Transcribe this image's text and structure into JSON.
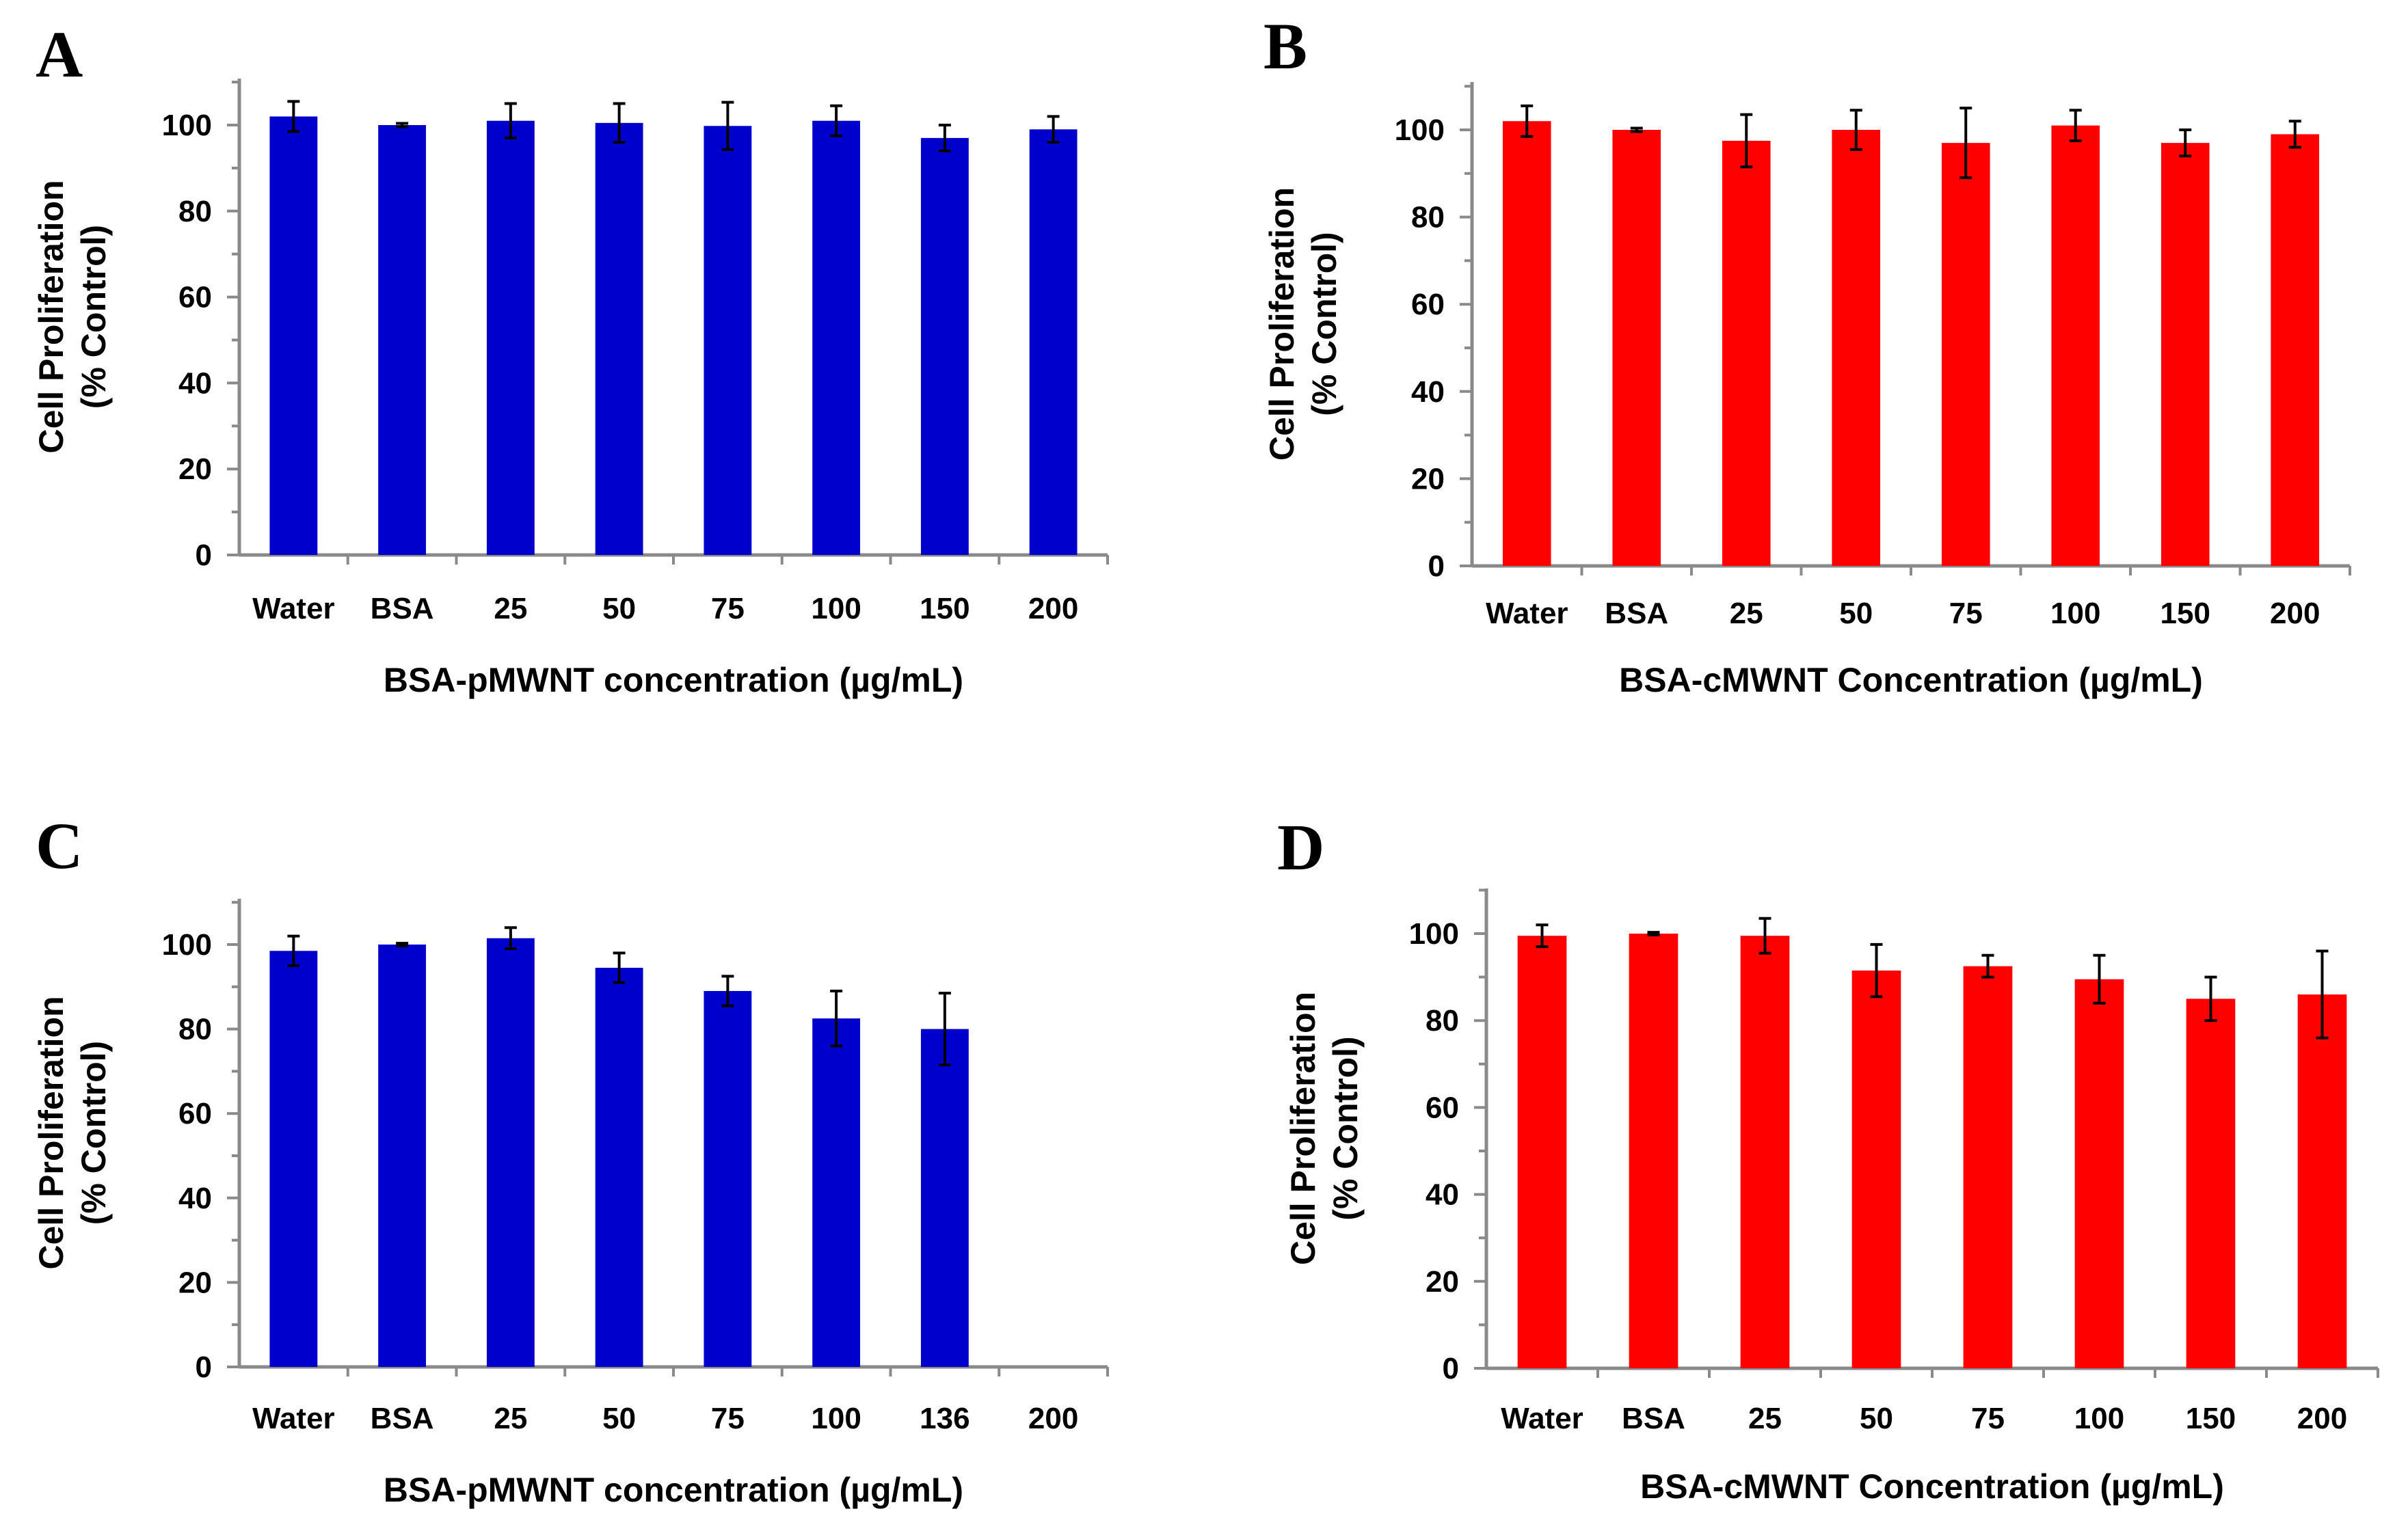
{
  "chart_data": [
    {
      "panel": "A",
      "type": "bar",
      "color": "#0000CC",
      "categories": [
        "Water",
        "BSA",
        "25",
        "50",
        "75",
        "100",
        "150",
        "200"
      ],
      "values": [
        102,
        100,
        101,
        100.5,
        99.8,
        101,
        97,
        99
      ],
      "errors": [
        3.5,
        0.4,
        4,
        4.5,
        5.5,
        3.5,
        3,
        3
      ],
      "xlabel": "BSA-pMWNT concentration (µg/mL)",
      "ylabel": [
        "Cell Proliferation",
        "(% Control)"
      ],
      "ylim": [
        0,
        110
      ],
      "yticks": [
        0,
        20,
        40,
        60,
        80,
        100
      ]
    },
    {
      "panel": "B",
      "type": "bar",
      "color": "#FF0000",
      "categories": [
        "Water",
        "BSA",
        "25",
        "50",
        "75",
        "100",
        "150",
        "200"
      ],
      "values": [
        102,
        100,
        97.5,
        100,
        97,
        101,
        97,
        99
      ],
      "errors": [
        3.5,
        0.4,
        6,
        4.5,
        8,
        3.5,
        3,
        3
      ],
      "xlabel": "BSA-cMWNT Concentration (µg/mL)",
      "ylabel": [
        "Cell Proliferation",
        "(% Control)"
      ],
      "ylim": [
        0,
        110
      ],
      "yticks": [
        0,
        20,
        40,
        60,
        80,
        100
      ]
    },
    {
      "panel": "C",
      "type": "bar",
      "color": "#0000CC",
      "categories": [
        "Water",
        "BSA",
        "25",
        "50",
        "75",
        "100",
        "136",
        "200"
      ],
      "values": [
        98.5,
        100,
        101.5,
        94.5,
        89,
        82.5,
        80,
        null
      ],
      "errors": [
        3.5,
        0.3,
        2.5,
        3.5,
        3.5,
        6.5,
        8.5,
        null
      ],
      "xlabel": "BSA-pMWNT concentration (µg/mL)",
      "ylabel": [
        "Cell Proliferation",
        "(% Control)"
      ],
      "ylim": [
        0,
        110
      ],
      "yticks": [
        0,
        20,
        40,
        60,
        80,
        100
      ]
    },
    {
      "panel": "D",
      "type": "bar",
      "color": "#FF0000",
      "categories": [
        "Water",
        "BSA",
        "25",
        "50",
        "75",
        "100",
        "150",
        "200"
      ],
      "values": [
        99.5,
        100,
        99.5,
        91.5,
        92.5,
        89.5,
        85,
        86
      ],
      "errors": [
        2.5,
        0.3,
        4,
        6,
        2.5,
        5.5,
        5,
        10
      ],
      "xlabel": "BSA-cMWNT Concentration (µg/mL)",
      "ylabel": [
        "Cell Proliferation",
        "(% Control)"
      ],
      "ylim": [
        0,
        110
      ],
      "yticks": [
        0,
        20,
        40,
        60,
        80,
        100
      ]
    }
  ]
}
